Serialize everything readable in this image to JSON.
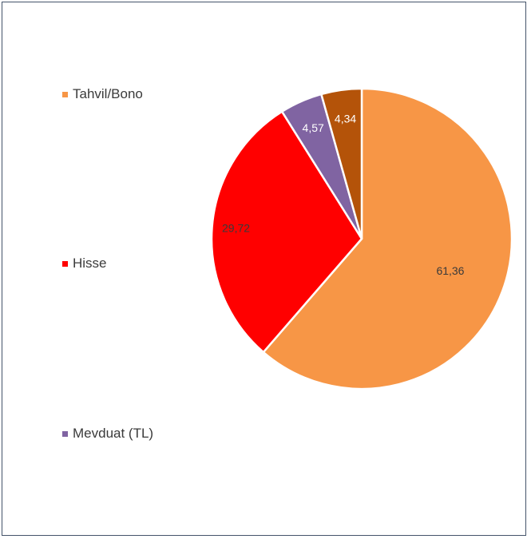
{
  "chart_data": {
    "type": "pie",
    "slices": [
      {
        "name": "Tahvil/Bono",
        "value": 61.36,
        "label": "61,36",
        "color": "#f79646",
        "label_color": "#3a3a3a"
      },
      {
        "name": "Hisse",
        "value": 29.72,
        "label": "29,72",
        "color": "#ff0000",
        "label_color": "#3a3a3a"
      },
      {
        "name": "Mevduat (TL)",
        "value": 4.57,
        "label": "4,57",
        "color": "#8064a2",
        "label_color": "#ffffff"
      },
      {
        "name": "",
        "value": 4.34,
        "label": "4,34",
        "color": "#b45309",
        "label_color": "#ffffff"
      }
    ],
    "legend": [
      {
        "label": "Tahvil/Bono",
        "color": "#f79646"
      },
      {
        "label": "Hisse",
        "color": "#ff0000"
      },
      {
        "label": "Mevduat (TL)",
        "color": "#8064a2"
      }
    ],
    "legend_placement": "left",
    "start_angle": "12 o'clock",
    "direction": "clockwise"
  }
}
